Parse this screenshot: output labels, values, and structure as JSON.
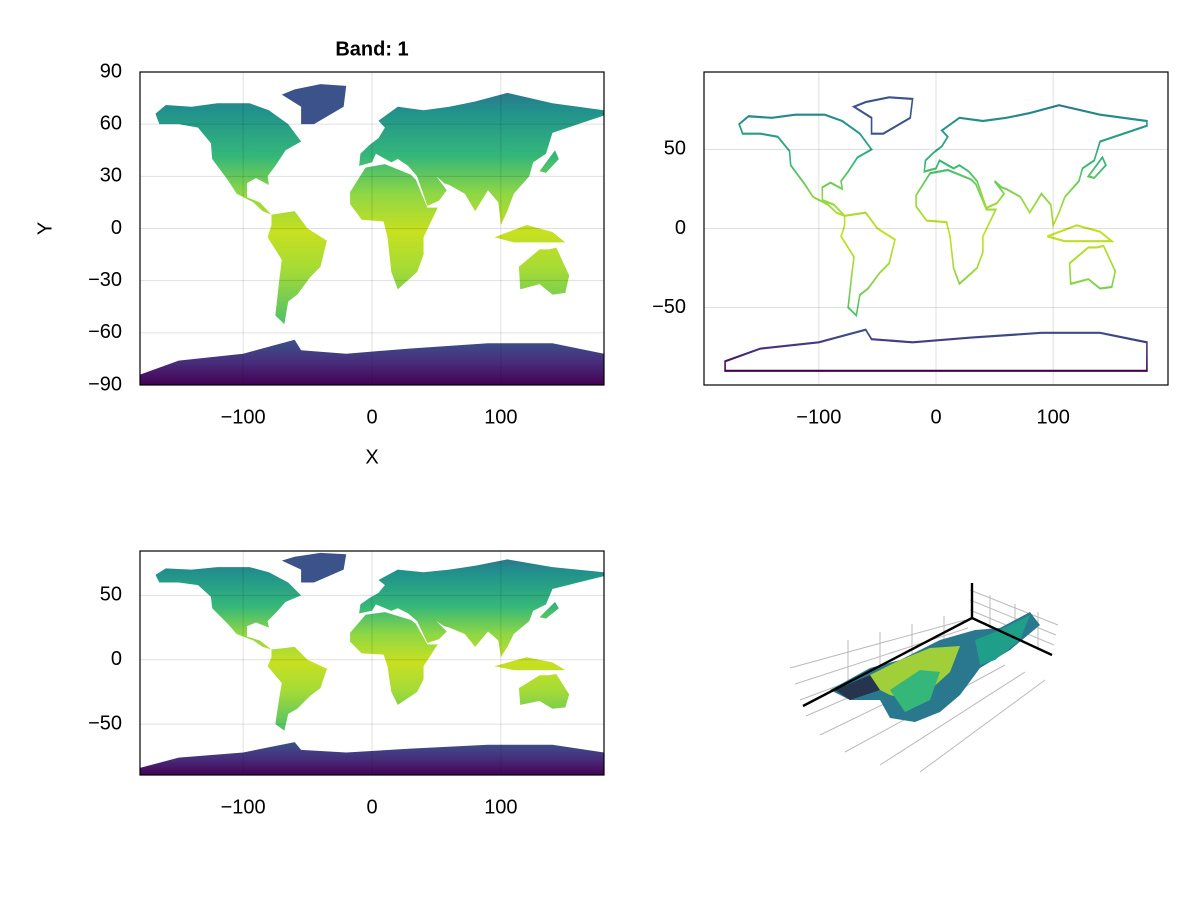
{
  "chart_data": [
    {
      "type": "heatmap",
      "title": "Band: 1",
      "xlabel": "X",
      "ylabel": "Y",
      "xlim": [
        -180,
        180
      ],
      "ylim": [
        -90,
        90
      ],
      "xticks": [
        {
          "value": -100,
          "label": "−100"
        },
        0,
        100
      ],
      "yticks": [
        90,
        60,
        30,
        0,
        {
          "value": -30,
          "label": "−30"
        },
        {
          "value": -60,
          "label": "−60"
        },
        {
          "value": -90,
          "label": "−90"
        }
      ],
      "grid": true
    },
    {
      "type": "contour",
      "xlim": [
        -198,
        198
      ],
      "ylim": [
        -99,
        99
      ],
      "xticks": [
        {
          "value": -100,
          "label": "−100"
        },
        0,
        100
      ],
      "yticks": [
        50,
        0,
        {
          "value": -50,
          "label": "−50"
        }
      ],
      "grid": true
    },
    {
      "type": "heatmap",
      "xlim": [
        -180,
        180
      ],
      "ylim": [
        -89.5,
        84.5
      ],
      "xticks": [
        {
          "value": -100,
          "label": "−100"
        },
        0,
        100
      ],
      "yticks": [
        50,
        0,
        {
          "value": -50,
          "label": "−50"
        }
      ],
      "grid": true
    }
  ]
}
